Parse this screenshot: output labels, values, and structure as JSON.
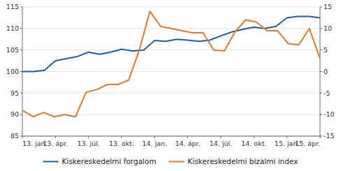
{
  "chart_data": {
    "type": "line",
    "xlim": [
      0,
      27
    ],
    "xticks": [
      {
        "value": 0,
        "label": "13. jan."
      },
      {
        "value": 3,
        "label": "13. ápr."
      },
      {
        "value": 6,
        "label": "13. júl."
      },
      {
        "value": 9,
        "label": "13. okt."
      },
      {
        "value": 12,
        "label": "14. jan."
      },
      {
        "value": 15,
        "label": "14. ápr."
      },
      {
        "value": 18,
        "label": "14. júl."
      },
      {
        "value": 21,
        "label": "14. okt."
      },
      {
        "value": 24,
        "label": "15. jan."
      },
      {
        "value": 27,
        "label": "15. ápr."
      }
    ],
    "ylim": [
      85,
      115
    ],
    "yticks": [
      85,
      90,
      95,
      100,
      105,
      110,
      115
    ],
    "y2lim": [
      -15,
      15
    ],
    "y2ticks": [
      -15,
      -10,
      -5,
      0,
      5,
      10,
      15
    ],
    "grid": true,
    "legend": "bottom",
    "series": [
      {
        "name": "Kiskereskedelmi forgalom",
        "color": "#1f5fa8",
        "x": [
          0,
          1,
          2,
          3,
          4,
          5,
          6,
          7,
          8,
          9,
          10,
          11,
          12,
          13,
          14,
          15,
          16,
          17,
          18,
          19,
          20,
          21,
          22,
          23,
          24,
          25,
          26,
          27
        ],
        "values": [
          100.0,
          100.0,
          100.3,
          102.5,
          103.0,
          103.5,
          104.5,
          104.0,
          104.5,
          105.2,
          104.8,
          105.0,
          107.2,
          107.0,
          107.5,
          107.3,
          107.0,
          107.3,
          108.3,
          109.2,
          109.8,
          110.3,
          110.0,
          110.5,
          112.5,
          112.8,
          112.8,
          112.5
        ]
      },
      {
        "name": "Kiskereskedelmi bizalmi index",
        "color": "#e07b28",
        "axis": "y2",
        "x": [
          0,
          0.9642857142857143,
          1.9285714285714286,
          2.892857142857143,
          3.857142857142857,
          4.821428571428571,
          5.785714285714286,
          6.75,
          7.714285714285714,
          8.678571428571429,
          9.642857142857142,
          10.607142857142858,
          11.571428571428571,
          12.535714285714286,
          13.5,
          14.464285714285714,
          15.428571428571429,
          16.392857142857142,
          17.357142857142858,
          18.321428571428573,
          19.285714285714285,
          20.25,
          21.214285714285715,
          22.178571428571427,
          23.142857142857142,
          24.107142857142858,
          25.071428571428573,
          26.035714285714285,
          27
        ],
        "values": [
          -9.0,
          -10.5,
          -9.5,
          -10.5,
          -10.0,
          -10.5,
          -4.8,
          -4.2,
          -3.0,
          -3.0,
          -2.0,
          5.0,
          14.0,
          10.5,
          10.0,
          9.5,
          9.0,
          9.0,
          5.0,
          4.8,
          9.2,
          12.0,
          11.5,
          9.5,
          9.5,
          6.5,
          6.2,
          10.0,
          3.0
        ]
      }
    ]
  }
}
